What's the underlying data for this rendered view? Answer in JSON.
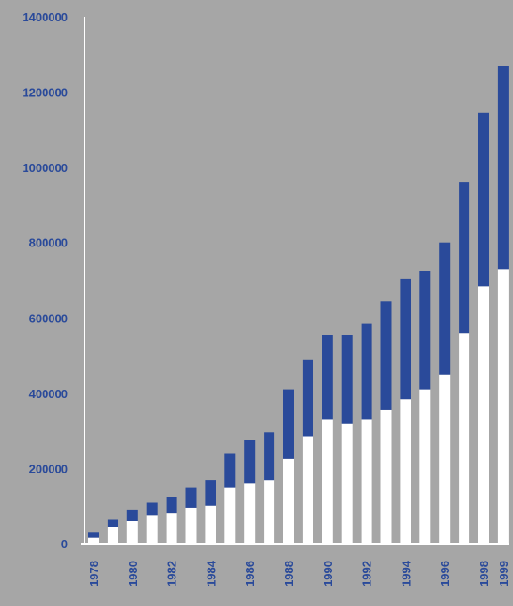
{
  "colors": {
    "background": "#a6a6a6",
    "upper_segment": "#2a4a9a",
    "lower_segment": "#ffffff",
    "axis": "#ffffff",
    "tick_text": "#2a4a9a"
  },
  "chart_data": {
    "type": "bar",
    "stacked": true,
    "orientation": "vertical",
    "title": "",
    "xlabel": "",
    "ylabel": "",
    "ylim": [
      0,
      1400000
    ],
    "yticks": [
      0,
      200000,
      400000,
      600000,
      800000,
      1000000,
      1200000,
      1400000
    ],
    "ytick_labels": [
      "0",
      "200000",
      "400000",
      "600000",
      "800000",
      "1000000",
      "1200000",
      "1400000"
    ],
    "categories": [
      "1978",
      "1979",
      "1980",
      "1981",
      "1982",
      "1983",
      "1984",
      "1985",
      "1986",
      "1987",
      "1988",
      "1989",
      "1990",
      "1991",
      "1992",
      "1993",
      "1994",
      "1995",
      "1996",
      "1997",
      "1998",
      "1999"
    ],
    "xtick_labels": [
      "1978",
      "",
      "1980",
      "",
      "1982",
      "",
      "1984",
      "",
      "1986",
      "",
      "1988",
      "",
      "1990",
      "",
      "1992",
      "",
      "1994",
      "",
      "1996",
      "",
      "1998",
      "1999"
    ],
    "series": [
      {
        "color": "#ffffff",
        "values": [
          15000,
          45000,
          60000,
          75000,
          80000,
          95000,
          100000,
          150000,
          160000,
          170000,
          225000,
          285000,
          330000,
          320000,
          330000,
          355000,
          385000,
          410000,
          450000,
          560000,
          685000,
          730000
        ]
      },
      {
        "color": "#2a4a9a",
        "values": [
          15000,
          20000,
          30000,
          35000,
          45000,
          55000,
          70000,
          90000,
          115000,
          125000,
          185000,
          205000,
          225000,
          235000,
          255000,
          290000,
          320000,
          315000,
          350000,
          400000,
          460000,
          540000
        ]
      }
    ],
    "grid": false,
    "legend": "none"
  }
}
